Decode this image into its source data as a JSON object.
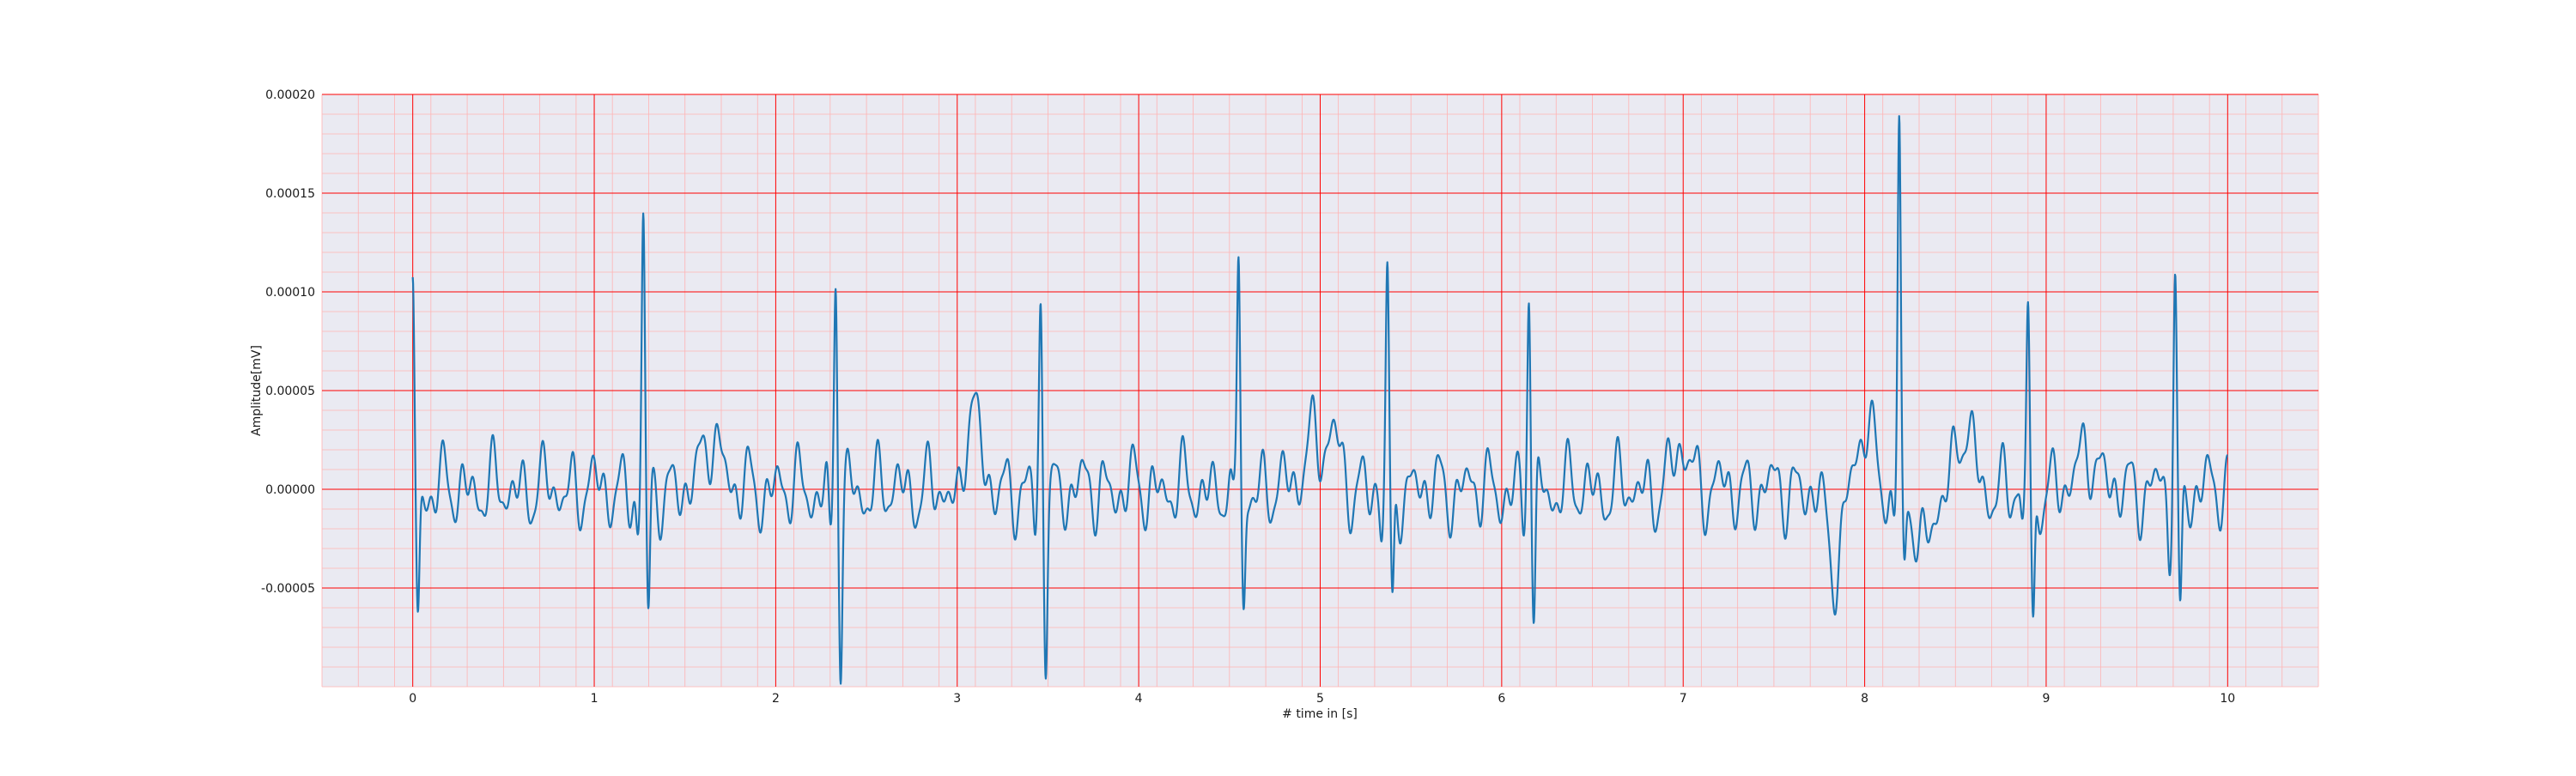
{
  "chart_data": {
    "type": "line",
    "title": "",
    "xlabel": "# time in [s]",
    "ylabel": "Amplitude[mV]",
    "xlim": [
      -0.5,
      10.5
    ],
    "ylim": [
      -0.0001,
      0.0002
    ],
    "xticks": [
      0,
      1,
      2,
      3,
      4,
      5,
      6,
      7,
      8,
      9,
      10
    ],
    "xtick_labels": [
      "0",
      "1",
      "2",
      "3",
      "4",
      "5",
      "6",
      "7",
      "8",
      "9",
      "10"
    ],
    "yticks": [
      -5e-05,
      0.0,
      5e-05,
      0.0001,
      0.00015,
      0.0002
    ],
    "ytick_labels": [
      "-0.00005",
      "0.00000",
      "0.00005",
      "0.00010",
      "0.00015",
      "0.00020"
    ],
    "grid": true,
    "colors": {
      "line": "#1f77b4",
      "plot_background": "#eaeaf2",
      "major_grid": "#ff0000",
      "minor_grid": "#ffb3b3"
    },
    "beats": [
      {
        "t": 0.0,
        "peak": 9.1e-05,
        "trough": -6.4e-05
      },
      {
        "t": 1.27,
        "peak": 0.000132,
        "trough": -6.8e-05
      },
      {
        "t": 2.33,
        "peak": 0.000111,
        "trough": -8.5e-05
      },
      {
        "t": 3.46,
        "peak": 9.2e-05,
        "trough": -7.6e-05
      },
      {
        "t": 4.55,
        "peak": 0.000121,
        "trough": -5.9e-05
      },
      {
        "t": 5.37,
        "peak": 0.000105,
        "trough": -6.6e-05
      },
      {
        "t": 6.15,
        "peak": 0.000111,
        "trough": -6.9e-05
      },
      {
        "t": 8.19,
        "peak": 0.000188,
        "trough": -4.4e-05
      },
      {
        "t": 8.9,
        "peak": 9.5e-05,
        "trough": -7.6e-05
      },
      {
        "t": 9.71,
        "peak": 0.000102,
        "trough": -7e-05
      }
    ],
    "waves": [
      {
        "t": 1.65,
        "amp": 3e-05
      },
      {
        "t": 3.06,
        "amp": 6.2e-05
      },
      {
        "t": 4.95,
        "amp": 2.6e-05
      },
      {
        "t": 5.07,
        "amp": 2.4e-05
      },
      {
        "t": 7.0,
        "amp": 2.2e-05
      },
      {
        "t": 8.0,
        "amp": 3.1e-05
      },
      {
        "t": 8.55,
        "amp": 3e-05
      },
      {
        "t": 9.23,
        "amp": 2.3e-05
      }
    ],
    "dips": [
      {
        "t": 3.02,
        "amp": -3.6e-05
      },
      {
        "t": 7.83,
        "amp": -4e-05
      },
      {
        "t": 8.32,
        "amp": -3.5e-05
      }
    ],
    "end_x": 10.0
  }
}
